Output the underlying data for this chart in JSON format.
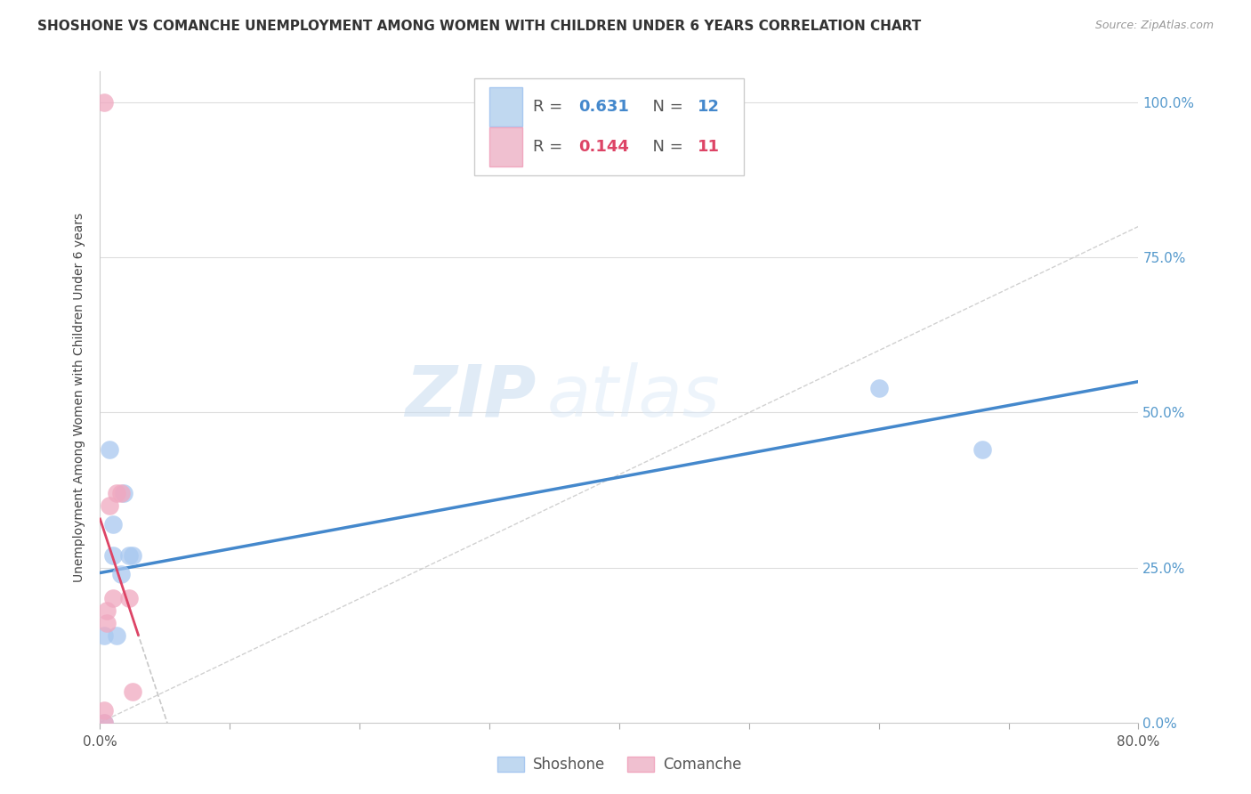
{
  "title": "SHOSHONE VS COMANCHE UNEMPLOYMENT AMONG WOMEN WITH CHILDREN UNDER 6 YEARS CORRELATION CHART",
  "source": "Source: ZipAtlas.com",
  "ylabel": "Unemployment Among Women with Children Under 6 years",
  "xlim": [
    0.0,
    0.8
  ],
  "ylim": [
    0.0,
    1.05
  ],
  "xticks": [
    0.0,
    0.1,
    0.2,
    0.3,
    0.4,
    0.5,
    0.6,
    0.7,
    0.8
  ],
  "xticklabels": [
    "0.0%",
    "",
    "",
    "",
    "",
    "",
    "",
    "",
    "80.0%"
  ],
  "yticks": [
    0.0,
    0.25,
    0.5,
    0.75,
    1.0
  ],
  "yticklabels": [
    "0.0%",
    "25.0%",
    "50.0%",
    "75.0%",
    "100.0%"
  ],
  "shoshone_x": [
    0.003,
    0.003,
    0.007,
    0.01,
    0.01,
    0.013,
    0.016,
    0.018,
    0.022,
    0.025,
    0.6,
    0.68
  ],
  "shoshone_y": [
    0.0,
    0.14,
    0.44,
    0.27,
    0.32,
    0.14,
    0.24,
    0.37,
    0.27,
    0.27,
    0.54,
    0.44
  ],
  "comanche_x": [
    0.003,
    0.003,
    0.005,
    0.005,
    0.007,
    0.01,
    0.013,
    0.016,
    0.022,
    0.025,
    0.003
  ],
  "comanche_y": [
    0.0,
    0.02,
    0.16,
    0.18,
    0.35,
    0.2,
    0.37,
    0.37,
    0.2,
    0.05,
    1.0
  ],
  "shoshone_R": 0.631,
  "shoshone_N": 12,
  "comanche_R": 0.144,
  "comanche_N": 11,
  "shoshone_color": "#A8C8F0",
  "comanche_color": "#F0A8C0",
  "shoshone_line_color": "#4488CC",
  "comanche_line_color": "#DD4466",
  "background_color": "#FFFFFF",
  "grid_color": "#DDDDDD",
  "tick_label_color_y": "#5599CC",
  "watermark_text": "ZIP",
  "watermark_text2": "atlas",
  "legend_box_color_shoshone": "#C0D8F0",
  "legend_box_color_comanche": "#F0C0D0"
}
